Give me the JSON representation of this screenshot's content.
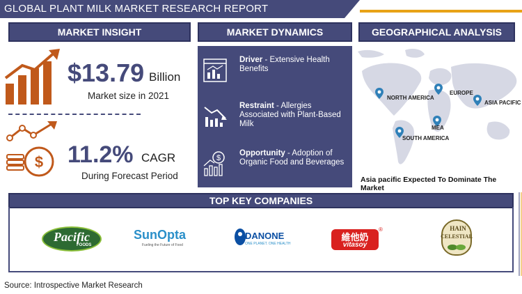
{
  "title": "GLOBAL PLANT MILK MARKET RESEARCH REPORT",
  "sections": {
    "insight": "MARKET INSIGHT",
    "dynamics": "MARKET DYNAMICS",
    "geo": "GEOGRAPHICAL ANALYSIS",
    "companies": "TOP KEY COMPANIES"
  },
  "insight": {
    "market_value": "$13.79",
    "market_unit": "Billion",
    "market_caption": "Market size in 2021",
    "cagr_value": "11.2%",
    "cagr_unit": "CAGR",
    "cagr_caption": "During Forecast Period"
  },
  "dynamics": [
    {
      "label": "Driver",
      "text": " - Extensive Health Benefits",
      "icon": "chart-report-icon"
    },
    {
      "label": "Restraint",
      "text": " - Allergies Associated with Plant-Based Milk",
      "icon": "declining-chart-icon"
    },
    {
      "label": "Opportunity",
      "text": " - Adoption of Organic Food and Beverages",
      "icon": "growth-dollar-icon"
    }
  ],
  "geo": {
    "regions": [
      "NORTH AMERICA",
      "EUROPE",
      "ASIA PACIFIC",
      "MEA",
      "SOUTH AMERICA"
    ],
    "dominate": "Asia pacific Expected To Dominate The Market"
  },
  "companies": [
    {
      "name": "Pacific",
      "sub": "FOODS"
    },
    {
      "name": "SunOpta",
      "sub": "Fueling the Future of Food"
    },
    {
      "name": "DANONE",
      "sub": "ONE PLANET. ONE HEALTH"
    },
    {
      "name": "維他奶",
      "sub": "vitasoy"
    },
    {
      "name": "HAIN",
      "sub": "CELESTIAL"
    }
  ],
  "source": "Source: Introspective Market Research",
  "colors": {
    "primary": "#454a7a",
    "accent": "#e8a317",
    "icon_brown": "#c0591b"
  }
}
